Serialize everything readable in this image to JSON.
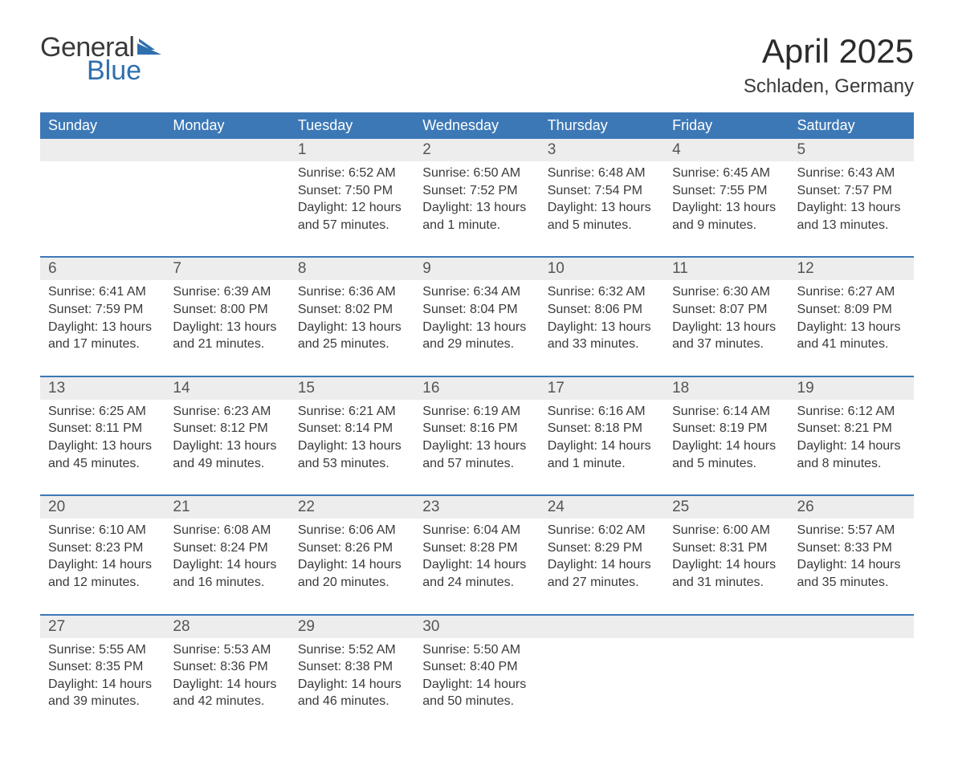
{
  "brand": {
    "word1": "General",
    "word2": "Blue",
    "accent_color": "#2f6fae"
  },
  "title": {
    "month_year": "April 2025",
    "location": "Schladen, Germany"
  },
  "colors": {
    "header_bg": "#3d78b6",
    "header_text": "#ffffff",
    "daynum_bg": "#ededed",
    "text": "#3a3a3a",
    "week_divider": "#3d78b6",
    "page_bg": "#ffffff"
  },
  "day_headers": [
    "Sunday",
    "Monday",
    "Tuesday",
    "Wednesday",
    "Thursday",
    "Friday",
    "Saturday"
  ],
  "weeks": [
    {
      "days": [
        null,
        null,
        {
          "n": "1",
          "sunrise": "Sunrise: 6:52 AM",
          "sunset": "Sunset: 7:50 PM",
          "daylight1": "Daylight: 12 hours",
          "daylight2": "and 57 minutes."
        },
        {
          "n": "2",
          "sunrise": "Sunrise: 6:50 AM",
          "sunset": "Sunset: 7:52 PM",
          "daylight1": "Daylight: 13 hours",
          "daylight2": "and 1 minute."
        },
        {
          "n": "3",
          "sunrise": "Sunrise: 6:48 AM",
          "sunset": "Sunset: 7:54 PM",
          "daylight1": "Daylight: 13 hours",
          "daylight2": "and 5 minutes."
        },
        {
          "n": "4",
          "sunrise": "Sunrise: 6:45 AM",
          "sunset": "Sunset: 7:55 PM",
          "daylight1": "Daylight: 13 hours",
          "daylight2": "and 9 minutes."
        },
        {
          "n": "5",
          "sunrise": "Sunrise: 6:43 AM",
          "sunset": "Sunset: 7:57 PM",
          "daylight1": "Daylight: 13 hours",
          "daylight2": "and 13 minutes."
        }
      ]
    },
    {
      "days": [
        {
          "n": "6",
          "sunrise": "Sunrise: 6:41 AM",
          "sunset": "Sunset: 7:59 PM",
          "daylight1": "Daylight: 13 hours",
          "daylight2": "and 17 minutes."
        },
        {
          "n": "7",
          "sunrise": "Sunrise: 6:39 AM",
          "sunset": "Sunset: 8:00 PM",
          "daylight1": "Daylight: 13 hours",
          "daylight2": "and 21 minutes."
        },
        {
          "n": "8",
          "sunrise": "Sunrise: 6:36 AM",
          "sunset": "Sunset: 8:02 PM",
          "daylight1": "Daylight: 13 hours",
          "daylight2": "and 25 minutes."
        },
        {
          "n": "9",
          "sunrise": "Sunrise: 6:34 AM",
          "sunset": "Sunset: 8:04 PM",
          "daylight1": "Daylight: 13 hours",
          "daylight2": "and 29 minutes."
        },
        {
          "n": "10",
          "sunrise": "Sunrise: 6:32 AM",
          "sunset": "Sunset: 8:06 PM",
          "daylight1": "Daylight: 13 hours",
          "daylight2": "and 33 minutes."
        },
        {
          "n": "11",
          "sunrise": "Sunrise: 6:30 AM",
          "sunset": "Sunset: 8:07 PM",
          "daylight1": "Daylight: 13 hours",
          "daylight2": "and 37 minutes."
        },
        {
          "n": "12",
          "sunrise": "Sunrise: 6:27 AM",
          "sunset": "Sunset: 8:09 PM",
          "daylight1": "Daylight: 13 hours",
          "daylight2": "and 41 minutes."
        }
      ]
    },
    {
      "days": [
        {
          "n": "13",
          "sunrise": "Sunrise: 6:25 AM",
          "sunset": "Sunset: 8:11 PM",
          "daylight1": "Daylight: 13 hours",
          "daylight2": "and 45 minutes."
        },
        {
          "n": "14",
          "sunrise": "Sunrise: 6:23 AM",
          "sunset": "Sunset: 8:12 PM",
          "daylight1": "Daylight: 13 hours",
          "daylight2": "and 49 minutes."
        },
        {
          "n": "15",
          "sunrise": "Sunrise: 6:21 AM",
          "sunset": "Sunset: 8:14 PM",
          "daylight1": "Daylight: 13 hours",
          "daylight2": "and 53 minutes."
        },
        {
          "n": "16",
          "sunrise": "Sunrise: 6:19 AM",
          "sunset": "Sunset: 8:16 PM",
          "daylight1": "Daylight: 13 hours",
          "daylight2": "and 57 minutes."
        },
        {
          "n": "17",
          "sunrise": "Sunrise: 6:16 AM",
          "sunset": "Sunset: 8:18 PM",
          "daylight1": "Daylight: 14 hours",
          "daylight2": "and 1 minute."
        },
        {
          "n": "18",
          "sunrise": "Sunrise: 6:14 AM",
          "sunset": "Sunset: 8:19 PM",
          "daylight1": "Daylight: 14 hours",
          "daylight2": "and 5 minutes."
        },
        {
          "n": "19",
          "sunrise": "Sunrise: 6:12 AM",
          "sunset": "Sunset: 8:21 PM",
          "daylight1": "Daylight: 14 hours",
          "daylight2": "and 8 minutes."
        }
      ]
    },
    {
      "days": [
        {
          "n": "20",
          "sunrise": "Sunrise: 6:10 AM",
          "sunset": "Sunset: 8:23 PM",
          "daylight1": "Daylight: 14 hours",
          "daylight2": "and 12 minutes."
        },
        {
          "n": "21",
          "sunrise": "Sunrise: 6:08 AM",
          "sunset": "Sunset: 8:24 PM",
          "daylight1": "Daylight: 14 hours",
          "daylight2": "and 16 minutes."
        },
        {
          "n": "22",
          "sunrise": "Sunrise: 6:06 AM",
          "sunset": "Sunset: 8:26 PM",
          "daylight1": "Daylight: 14 hours",
          "daylight2": "and 20 minutes."
        },
        {
          "n": "23",
          "sunrise": "Sunrise: 6:04 AM",
          "sunset": "Sunset: 8:28 PM",
          "daylight1": "Daylight: 14 hours",
          "daylight2": "and 24 minutes."
        },
        {
          "n": "24",
          "sunrise": "Sunrise: 6:02 AM",
          "sunset": "Sunset: 8:29 PM",
          "daylight1": "Daylight: 14 hours",
          "daylight2": "and 27 minutes."
        },
        {
          "n": "25",
          "sunrise": "Sunrise: 6:00 AM",
          "sunset": "Sunset: 8:31 PM",
          "daylight1": "Daylight: 14 hours",
          "daylight2": "and 31 minutes."
        },
        {
          "n": "26",
          "sunrise": "Sunrise: 5:57 AM",
          "sunset": "Sunset: 8:33 PM",
          "daylight1": "Daylight: 14 hours",
          "daylight2": "and 35 minutes."
        }
      ]
    },
    {
      "days": [
        {
          "n": "27",
          "sunrise": "Sunrise: 5:55 AM",
          "sunset": "Sunset: 8:35 PM",
          "daylight1": "Daylight: 14 hours",
          "daylight2": "and 39 minutes."
        },
        {
          "n": "28",
          "sunrise": "Sunrise: 5:53 AM",
          "sunset": "Sunset: 8:36 PM",
          "daylight1": "Daylight: 14 hours",
          "daylight2": "and 42 minutes."
        },
        {
          "n": "29",
          "sunrise": "Sunrise: 5:52 AM",
          "sunset": "Sunset: 8:38 PM",
          "daylight1": "Daylight: 14 hours",
          "daylight2": "and 46 minutes."
        },
        {
          "n": "30",
          "sunrise": "Sunrise: 5:50 AM",
          "sunset": "Sunset: 8:40 PM",
          "daylight1": "Daylight: 14 hours",
          "daylight2": "and 50 minutes."
        },
        null,
        null,
        null
      ]
    }
  ]
}
